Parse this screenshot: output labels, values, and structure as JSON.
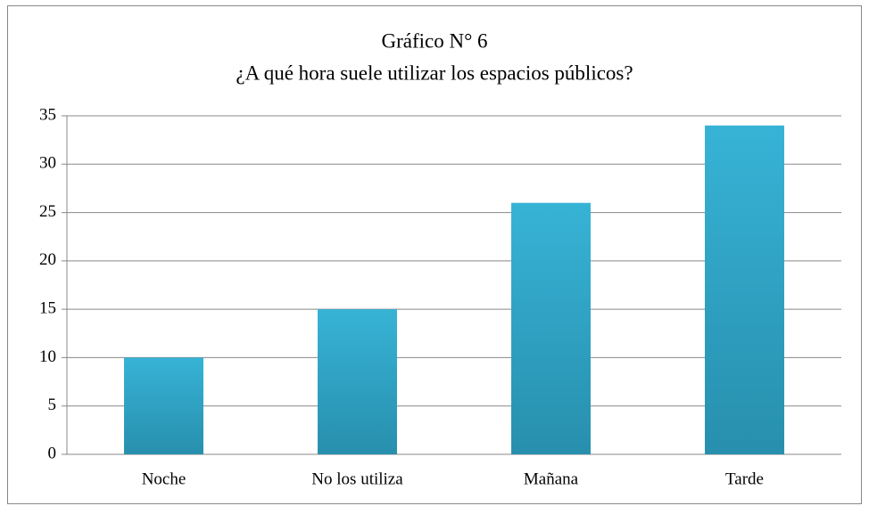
{
  "chart_data": {
    "type": "bar",
    "title": "Gráfico N° 6",
    "subtitle": "¿A qué hora suele utilizar los espacios públicos?",
    "categories": [
      "Noche",
      "No los utiliza",
      "Mañana",
      "Tarde"
    ],
    "values": [
      10,
      15,
      26,
      34
    ],
    "color": "#37b3d6",
    "ylim": [
      0,
      35
    ],
    "yticks": [
      0,
      5,
      10,
      15,
      20,
      25,
      30,
      35
    ],
    "grid": true
  }
}
